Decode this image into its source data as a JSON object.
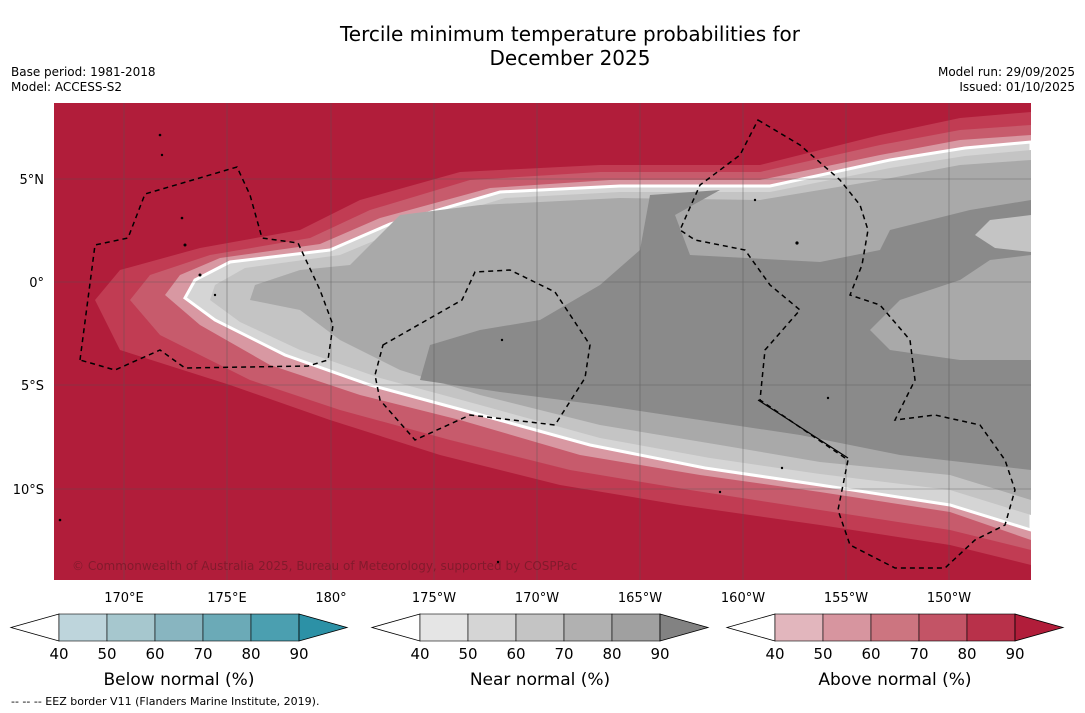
{
  "header": {
    "title_line1": "Tercile minimum temperature probabilities for",
    "title_line2": "December 2025",
    "base_period": "Base period: 1981-2018",
    "model": "Model: ACCESS-S2",
    "model_run": "Model run: 29/09/2025",
    "issued": "Issued: 01/10/2025"
  },
  "map": {
    "lat_labels": [
      "5°N",
      "0°",
      "5°S",
      "10°S"
    ],
    "lon_labels": [
      "170°E",
      "175°E",
      "180°",
      "175°W",
      "170°W",
      "165°W",
      "160°W",
      "155°W",
      "150°W"
    ],
    "copyright": "© Commonwealth of Australia 2025, Bureau of Meteorology, supported by COSPPac",
    "colors": {
      "above_90": "#b11d3a",
      "above_80": "#c13c53",
      "above_70": "#c75b6c",
      "near_50": "#d5d5d5",
      "near_60": "#c4c4c4",
      "near_70": "#a9a9a9",
      "near_80": "#8a8a8a"
    }
  },
  "colorbars": {
    "ticks": [
      "40",
      "50",
      "60",
      "70",
      "80",
      "90"
    ],
    "below": {
      "label": "Below normal (%)",
      "colors": [
        "#bed5dc",
        "#a6c7ce",
        "#88b5c0",
        "#6baab7",
        "#4b9fb0",
        "#2c91a6"
      ]
    },
    "near": {
      "label": "Near normal (%)",
      "colors": [
        "#e5e5e5",
        "#d5d5d5",
        "#c4c4c4",
        "#b1b1b1",
        "#a0a0a0",
        "#828282"
      ]
    },
    "above": {
      "label": "Above normal (%)",
      "colors": [
        "#e2b6bd",
        "#d7959f",
        "#cc7580",
        "#c35466",
        "#b8314a",
        "#b11d3a"
      ]
    }
  },
  "footnote": "--  --  -- EEZ border V11 (Flanders Marine Institute, 2019)."
}
